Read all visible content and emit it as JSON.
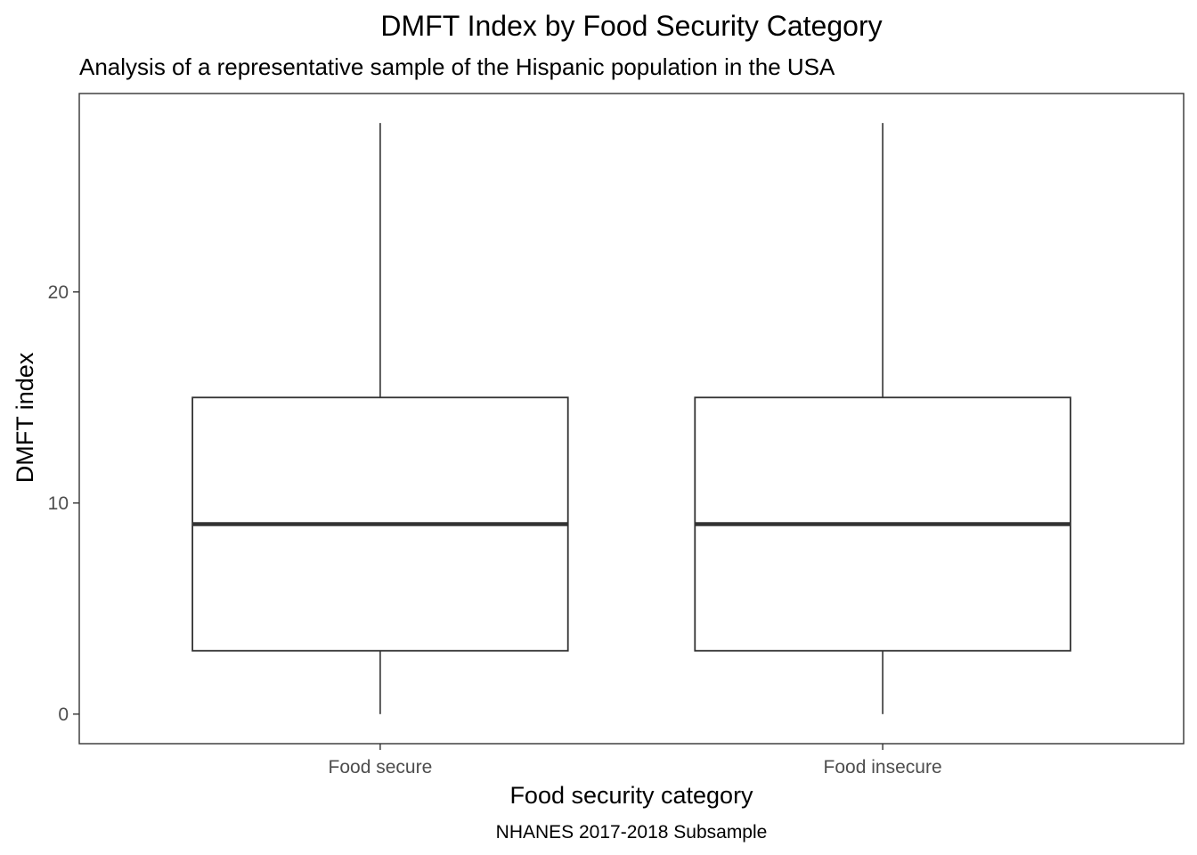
{
  "chart_data": {
    "type": "boxplot",
    "title": "DMFT Index by Food Security Category",
    "subtitle": "Analysis of a representative sample of the Hispanic population in the USA",
    "xlabel": "Food security category",
    "ylabel": "DMFT index",
    "caption": "NHANES 2017-2018 Subsample",
    "categories": [
      "Food secure",
      "Food insecure"
    ],
    "boxes": [
      {
        "category": "Food secure",
        "min": 0,
        "q1": 3,
        "median": 9,
        "q3": 15,
        "max": 28
      },
      {
        "category": "Food insecure",
        "min": 0,
        "q1": 3,
        "median": 9,
        "q3": 15,
        "max": 28
      }
    ],
    "yticks": [
      0,
      10,
      20
    ],
    "yticklabels": [
      "0",
      "10",
      "20"
    ],
    "ylim": [
      -1.4,
      29.4
    ],
    "grid": false,
    "legend": "none",
    "colors": {
      "stroke": "#333333",
      "panel_border": "#333333",
      "tick_text": "#4d4d4d"
    }
  }
}
